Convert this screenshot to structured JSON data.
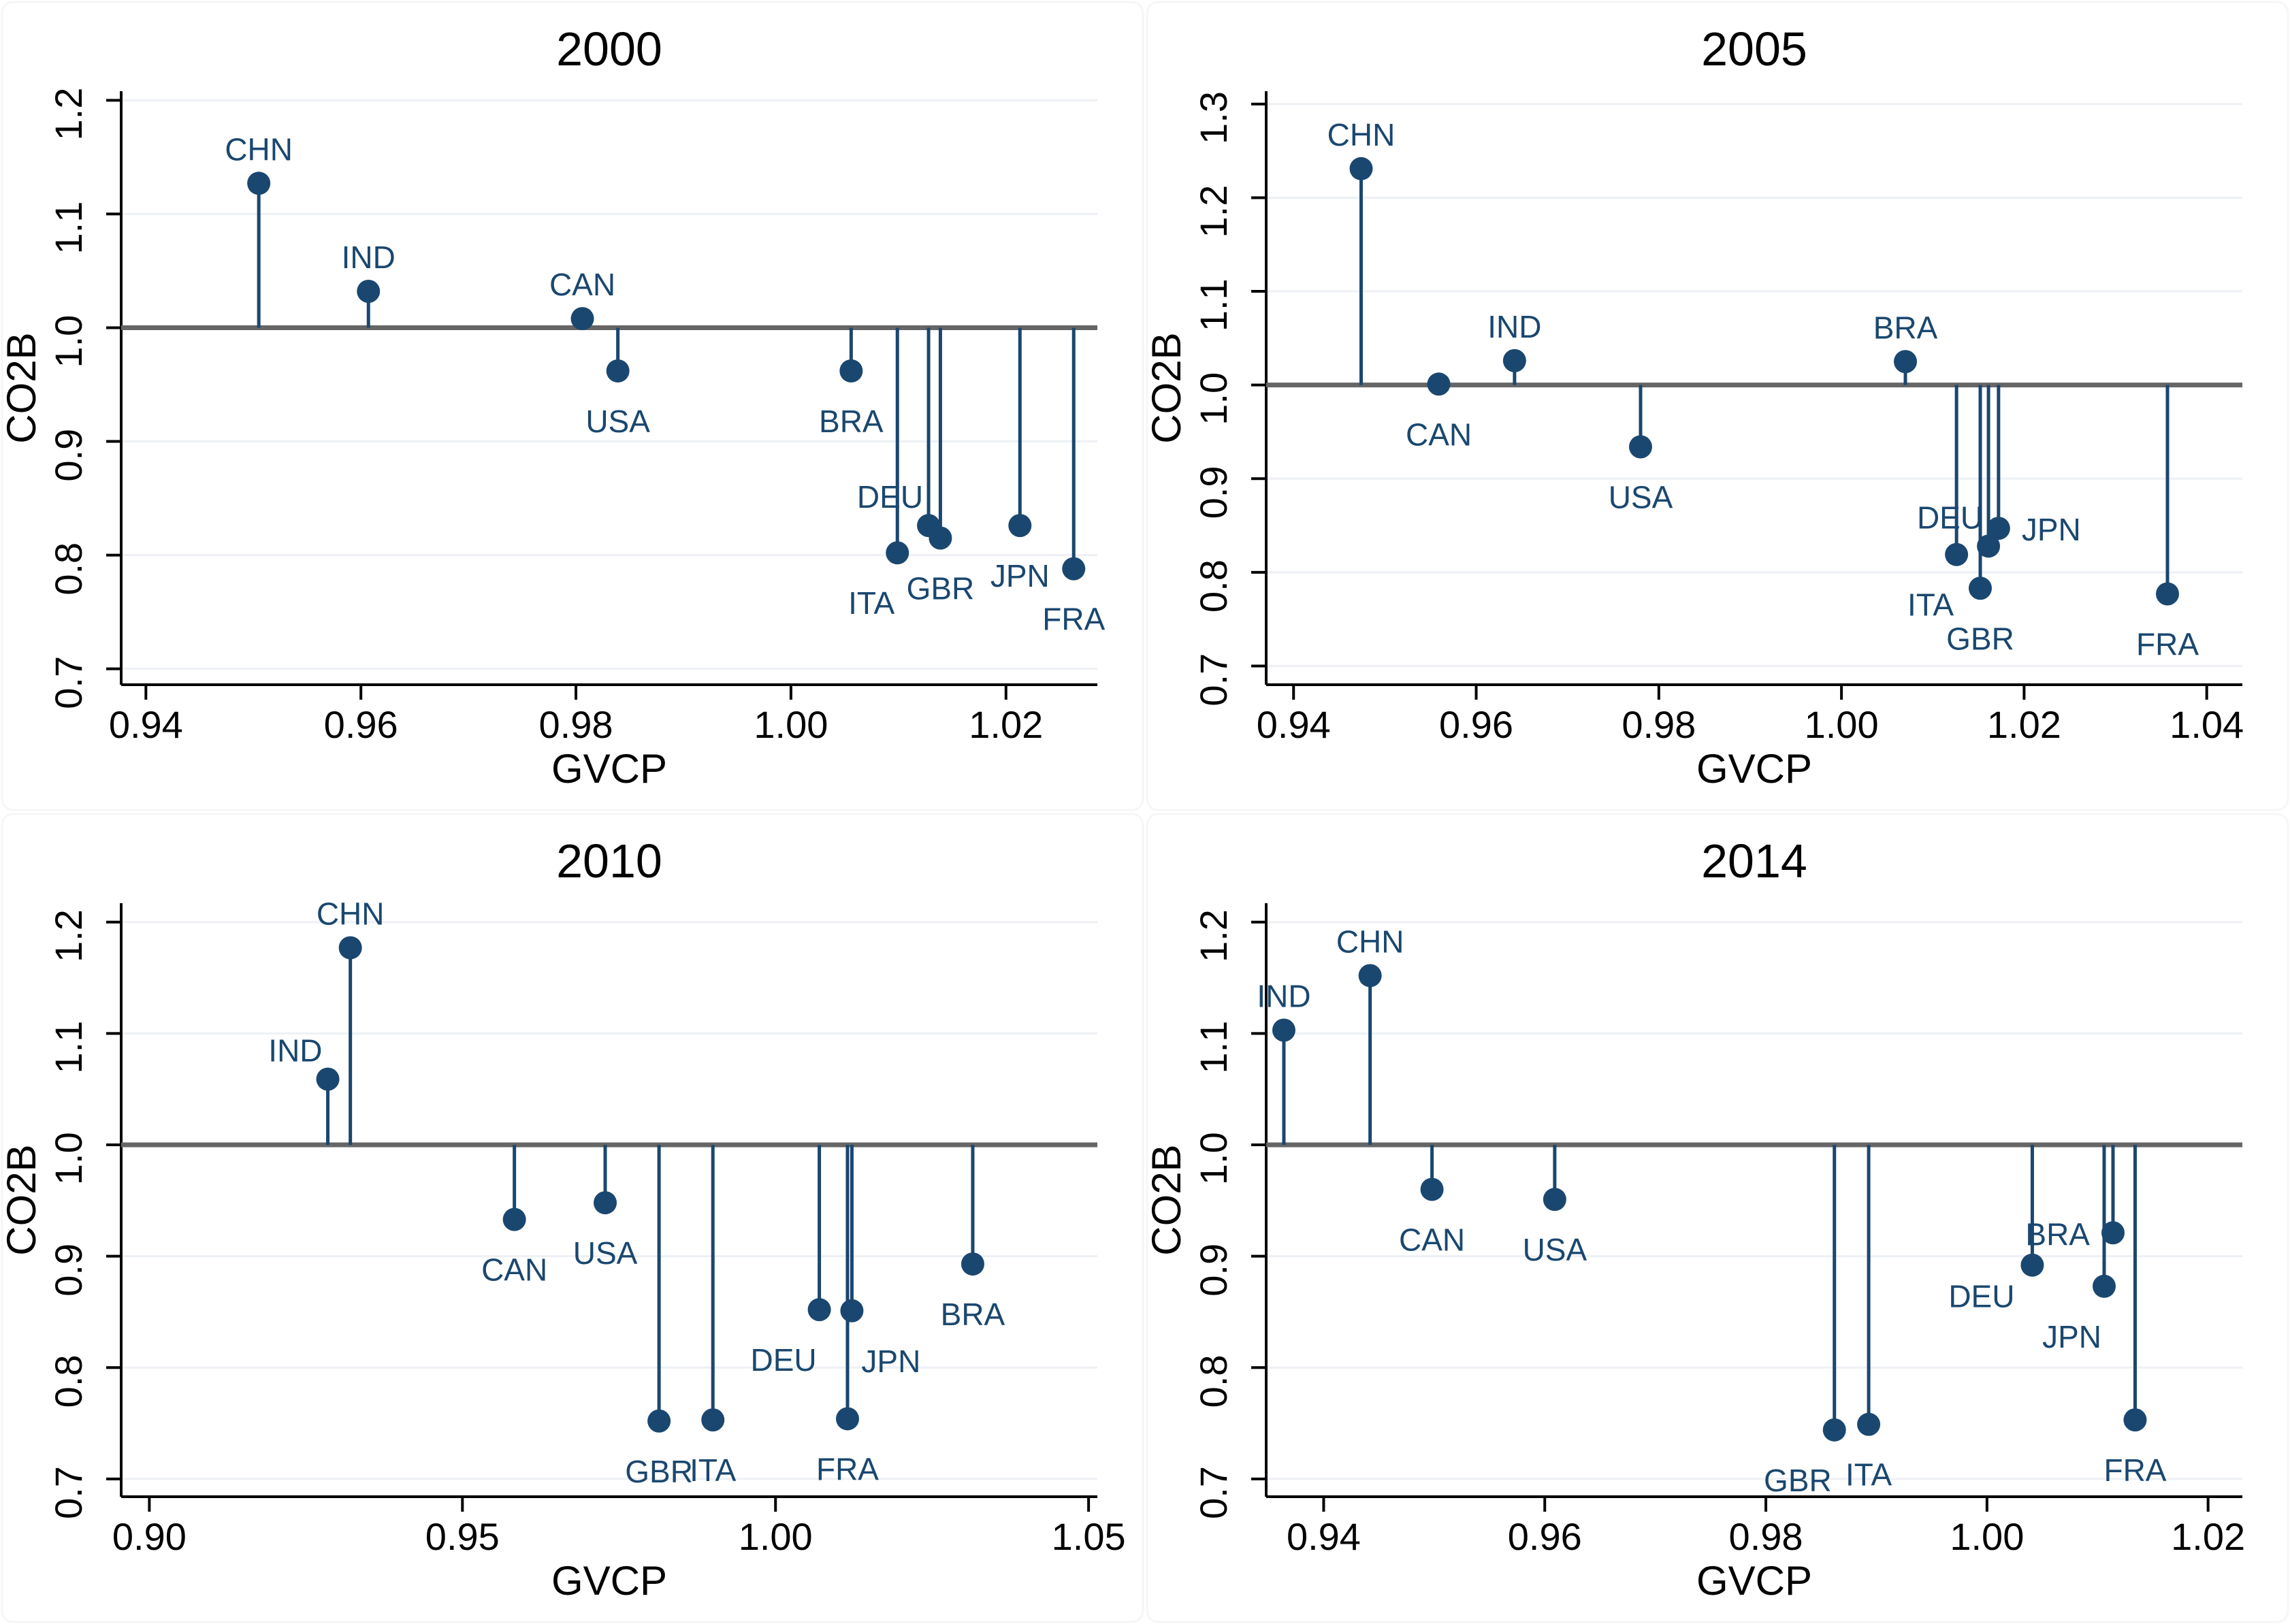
{
  "figure": {
    "xlabel": "GVCP",
    "ylabel": "CO2B",
    "colors": {
      "point": "#1a476f",
      "stem": "#1a476f",
      "country_label": "#1a476f",
      "baseline": "#666666",
      "axis": "#000000",
      "tick_text": "#000000",
      "grid": "#edf0f4",
      "panel_border": "#f6f6f7",
      "background": "#ffffff"
    }
  },
  "chart_data": [
    {
      "type": "scatter",
      "variant": "stem-lollipop",
      "title": "2000",
      "xlabel": "GVCP",
      "ylabel": "CO2B",
      "xlim": [
        0.9377,
        1.0285
      ],
      "ylim": [
        0.686,
        1.208
      ],
      "x_ticks": [
        0.94,
        0.96,
        0.98,
        1.0,
        1.02
      ],
      "y_ticks": [
        0.7,
        0.8,
        0.9,
        1.0,
        1.1,
        1.2
      ],
      "baseline": 1.0,
      "grid": "horizontal",
      "legend": "none",
      "points": [
        {
          "label": "CHN",
          "x": 0.9505,
          "y": 1.127,
          "label_side": "above"
        },
        {
          "label": "IND",
          "x": 0.9607,
          "y": 1.032,
          "label_side": "above"
        },
        {
          "label": "CAN",
          "x": 0.9806,
          "y": 1.008,
          "label_side": "above"
        },
        {
          "label": "USA",
          "x": 0.9839,
          "y": 0.962,
          "label_side": "below"
        },
        {
          "label": "BRA",
          "x": 1.0056,
          "y": 0.962,
          "label_side": "below"
        },
        {
          "label": "ITA",
          "x": 1.0099,
          "y": 0.802,
          "label_side": "below-left"
        },
        {
          "label": "DEU",
          "x": 1.0128,
          "y": 0.826,
          "label_side": "above-left"
        },
        {
          "label": "GBR",
          "x": 1.0139,
          "y": 0.815,
          "label_side": "below"
        },
        {
          "label": "JPN",
          "x": 1.0213,
          "y": 0.826,
          "label_side": "below"
        },
        {
          "label": "FRA",
          "x": 1.0263,
          "y": 0.788,
          "label_side": "below"
        }
      ]
    },
    {
      "type": "scatter",
      "variant": "stem-lollipop",
      "title": "2005",
      "xlabel": "GVCP",
      "ylabel": "CO2B",
      "xlim": [
        0.937,
        1.0439
      ],
      "ylim": [
        0.68,
        1.3137
      ],
      "x_ticks": [
        0.94,
        0.96,
        0.98,
        1.0,
        1.02,
        1.04
      ],
      "y_ticks": [
        0.7,
        0.8,
        0.9,
        1.0,
        1.1,
        1.2,
        1.3
      ],
      "baseline": 1.0,
      "grid": "horizontal",
      "legend": "none",
      "points": [
        {
          "label": "CHN",
          "x": 0.9474,
          "y": 1.231,
          "label_side": "above"
        },
        {
          "label": "CAN",
          "x": 0.9559,
          "y": 1.001,
          "label_side": "below"
        },
        {
          "label": "IND",
          "x": 0.9642,
          "y": 1.026,
          "label_side": "above"
        },
        {
          "label": "USA",
          "x": 0.978,
          "y": 0.934,
          "label_side": "below"
        },
        {
          "label": "BRA",
          "x": 1.007,
          "y": 1.025,
          "label_side": "above"
        },
        {
          "label": "ITA",
          "x": 1.0126,
          "y": 0.819,
          "label_side": "below-left"
        },
        {
          "label": "GBR",
          "x": 1.0152,
          "y": 0.783,
          "label_side": "below"
        },
        {
          "label": "DEU",
          "x": 1.0161,
          "y": 0.828,
          "label_side": "above-left"
        },
        {
          "label": "JPN",
          "x": 1.0172,
          "y": 0.847,
          "label_side": "right"
        },
        {
          "label": "FRA",
          "x": 1.0357,
          "y": 0.777,
          "label_side": "below"
        }
      ]
    },
    {
      "type": "scatter",
      "variant": "stem-lollipop",
      "title": "2010",
      "xlabel": "GVCP",
      "ylabel": "CO2B",
      "xlim": [
        0.8955,
        1.0514
      ],
      "ylim": [
        0.684,
        1.217
      ],
      "x_ticks": [
        0.9,
        0.95,
        1.0,
        1.05
      ],
      "y_ticks": [
        0.7,
        0.8,
        0.9,
        1.0,
        1.1,
        1.2
      ],
      "baseline": 1.0,
      "grid": "horizontal",
      "legend": "none",
      "points": [
        {
          "label": "IND",
          "x": 0.9285,
          "y": 1.059,
          "label_side": "above-left"
        },
        {
          "label": "CHN",
          "x": 0.9321,
          "y": 1.177,
          "label_side": "above"
        },
        {
          "label": "CAN",
          "x": 0.9583,
          "y": 0.933,
          "label_side": "below"
        },
        {
          "label": "USA",
          "x": 0.9728,
          "y": 0.948,
          "label_side": "below"
        },
        {
          "label": "GBR",
          "x": 0.9814,
          "y": 0.752,
          "label_side": "below"
        },
        {
          "label": "ITA",
          "x": 0.99,
          "y": 0.753,
          "label_side": "below"
        },
        {
          "label": "DEU",
          "x": 1.007,
          "y": 0.852,
          "label_side": "below-left"
        },
        {
          "label": "JPN",
          "x": 1.0122,
          "y": 0.851,
          "label_side": "below-right"
        },
        {
          "label": "FRA",
          "x": 1.0115,
          "y": 0.754,
          "label_side": "below"
        },
        {
          "label": "BRA",
          "x": 1.0315,
          "y": 0.893,
          "label_side": "below"
        }
      ]
    },
    {
      "type": "scatter",
      "variant": "stem-lollipop",
      "title": "2014",
      "xlabel": "GVCP",
      "ylabel": "CO2B",
      "xlim": [
        0.9348,
        1.0231
      ],
      "ylim": [
        0.684,
        1.217
      ],
      "x_ticks": [
        0.94,
        0.96,
        0.98,
        1.0,
        1.02
      ],
      "y_ticks": [
        0.7,
        0.8,
        0.9,
        1.0,
        1.1,
        1.2
      ],
      "baseline": 1.0,
      "grid": "horizontal",
      "legend": "none",
      "points": [
        {
          "label": "IND",
          "x": 0.9364,
          "y": 1.103,
          "label_side": "above"
        },
        {
          "label": "CHN",
          "x": 0.9442,
          "y": 1.152,
          "label_side": "above"
        },
        {
          "label": "CAN",
          "x": 0.9498,
          "y": 0.96,
          "label_side": "below"
        },
        {
          "label": "USA",
          "x": 0.9609,
          "y": 0.951,
          "label_side": "below"
        },
        {
          "label": "GBR",
          "x": 0.9862,
          "y": 0.744,
          "label_side": "below-left"
        },
        {
          "label": "ITA",
          "x": 0.9893,
          "y": 0.749,
          "label_side": "below"
        },
        {
          "label": "DEU",
          "x": 1.0041,
          "y": 0.892,
          "label_side": "left-low"
        },
        {
          "label": "JPN",
          "x": 1.0106,
          "y": 0.873,
          "label_side": "below-left"
        },
        {
          "label": "BRA",
          "x": 1.0114,
          "y": 0.921,
          "label_side": "left"
        },
        {
          "label": "FRA",
          "x": 1.0134,
          "y": 0.753,
          "label_side": "below"
        }
      ]
    }
  ]
}
